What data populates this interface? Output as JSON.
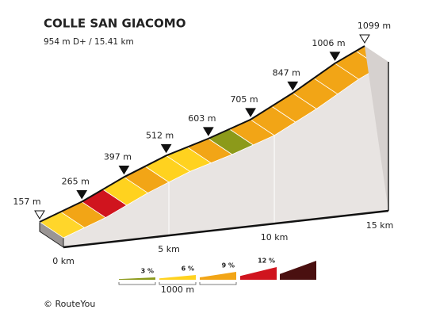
{
  "header": {
    "title": "COLLE SAN GIACOMO",
    "subtitle": "954 m D+ / 15.41 km"
  },
  "chart_data": {
    "type": "climb-profile",
    "x": [
      0,
      2,
      4,
      6,
      8,
      10,
      12,
      14,
      15.41
    ],
    "values": [
      157,
      265,
      397,
      512,
      603,
      705,
      847,
      1006,
      1099
    ],
    "value_labels": [
      "157 m",
      "265 m",
      "397 m",
      "512 m",
      "603 m",
      "705 m",
      "847 m",
      "1006 m",
      "1099 m"
    ],
    "xlim": [
      0,
      15.41
    ],
    "ylim": [
      157,
      1099
    ],
    "xticks": [
      {
        "value": 0,
        "label": "0 km"
      },
      {
        "value": 5,
        "label": "5 km"
      },
      {
        "value": 10,
        "label": "10 km"
      },
      {
        "value": 15,
        "label": "15 km"
      }
    ],
    "segment_colors": [
      "#ffd62a",
      "#f2a516",
      "#d0141e",
      "#ffd21f",
      "#f2a516",
      "#ffd21f",
      "#ffd21f",
      "#f2a516",
      "#8c9a1a",
      "#f2a516",
      "#f2a516",
      "#f2a516",
      "#f2a516",
      "#f2a516",
      "#f2a516",
      "#f2a516"
    ],
    "legend": [
      {
        "label": "3 %",
        "color": "#8c9a1a"
      },
      {
        "label": "6 %",
        "color": "#ffd21f"
      },
      {
        "label": "9 %",
        "color": "#f2a516"
      },
      {
        "label": "12 %",
        "color": "#d0141e"
      },
      {
        "color": "#4a1010"
      }
    ],
    "scale_label": "1000 m"
  },
  "footer": "© RouteYou"
}
